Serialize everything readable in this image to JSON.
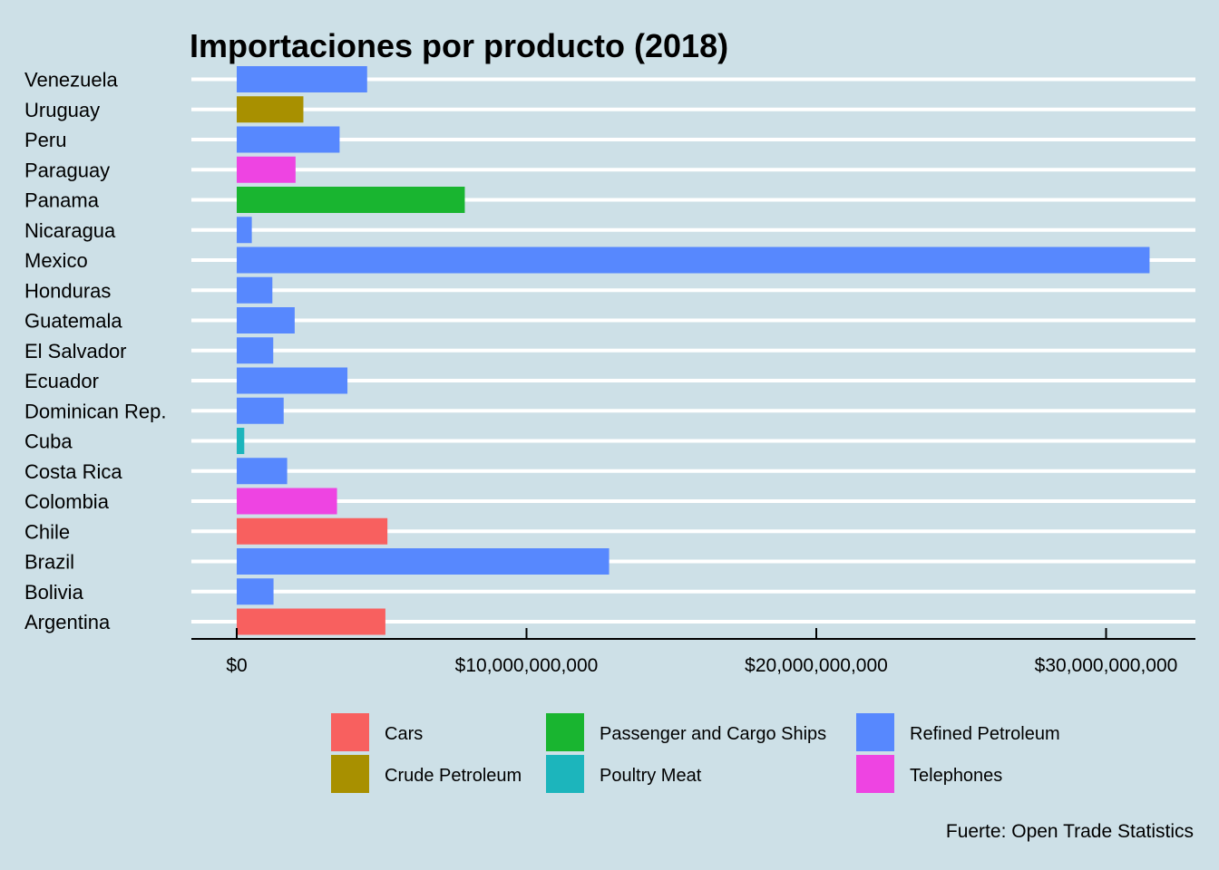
{
  "chart_data": {
    "type": "bar",
    "orientation": "horizontal",
    "title": "Importaciones por producto (2018)",
    "caption": "Fuerte: Open Trade Statistics",
    "xlabel": "",
    "ylabel": "",
    "xlim": [
      -1540000000,
      33000000000
    ],
    "x_ticks": [
      0,
      10000000000,
      20000000000,
      30000000000
    ],
    "x_tick_labels": [
      "$0",
      "$10,000,000,000",
      "$20,000,000,000",
      "$30,000,000,000"
    ],
    "grid": "horizontal major lines",
    "legend_position": "bottom",
    "categories": [
      "Venezuela",
      "Uruguay",
      "Peru",
      "Paraguay",
      "Panama",
      "Nicaragua",
      "Mexico",
      "Honduras",
      "Guatemala",
      "El Salvador",
      "Ecuador",
      "Dominican Rep.",
      "Cuba",
      "Costa Rica",
      "Colombia",
      "Chile",
      "Brazil",
      "Bolivia",
      "Argentina"
    ],
    "values": [
      4500000000,
      2300000000,
      3550000000,
      2030000000,
      7870000000,
      520000000,
      31500000000,
      1230000000,
      2000000000,
      1260000000,
      3820000000,
      1620000000,
      260000000,
      1740000000,
      3460000000,
      5200000000,
      12850000000,
      1270000000,
      5130000000
    ],
    "products": [
      "Refined Petroleum",
      "Crude Petroleum",
      "Refined Petroleum",
      "Telephones",
      "Passenger and Cargo Ships",
      "Refined Petroleum",
      "Refined Petroleum",
      "Refined Petroleum",
      "Refined Petroleum",
      "Refined Petroleum",
      "Refined Petroleum",
      "Refined Petroleum",
      "Poultry Meat",
      "Refined Petroleum",
      "Telephones",
      "Cars",
      "Refined Petroleum",
      "Refined Petroleum",
      "Cars"
    ],
    "legend": [
      {
        "label": "Cars",
        "color": "#f8605f"
      },
      {
        "label": "Crude Petroleum",
        "color": "#a89000"
      },
      {
        "label": "Passenger and Cargo Ships",
        "color": "#19b530"
      },
      {
        "label": "Poultry Meat",
        "color": "#1cb5bc"
      },
      {
        "label": "Refined Petroleum",
        "color": "#5788fe"
      },
      {
        "label": "Telephones",
        "color": "#ee44e2"
      }
    ],
    "background_color": "#cde0e7",
    "grid_color": "#ffffff"
  }
}
